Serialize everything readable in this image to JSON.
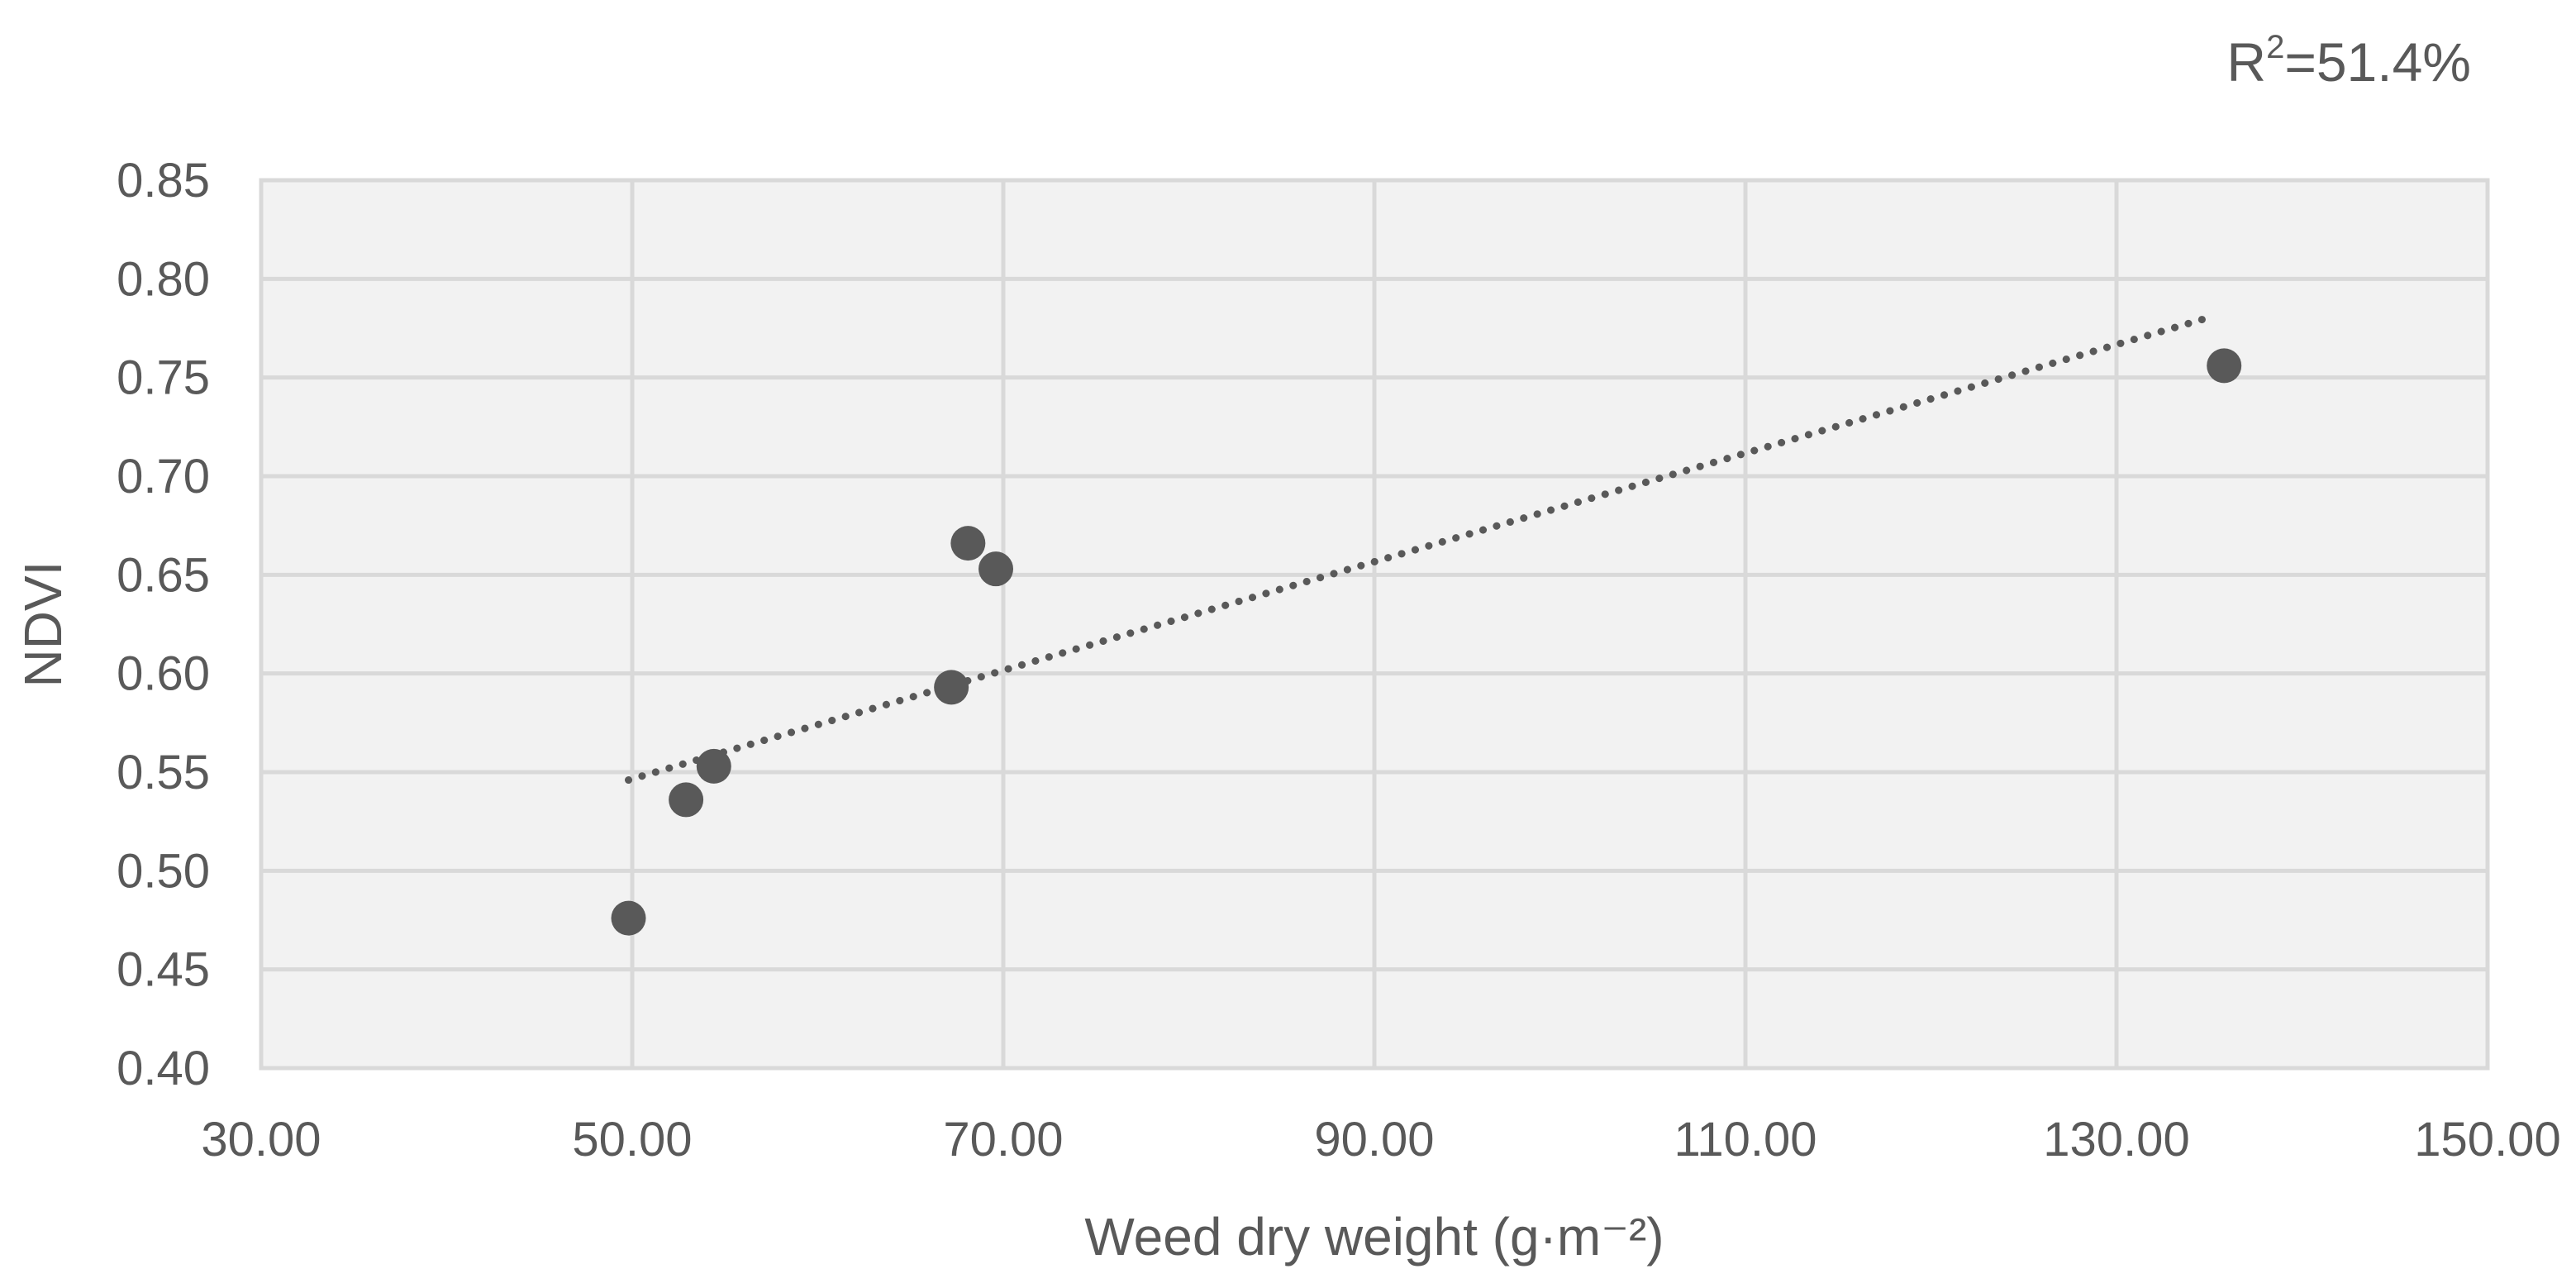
{
  "chart_data": {
    "type": "scatter",
    "title": "",
    "xlabel": "Weed dry weight (g·m⁻²)",
    "ylabel": "NDVI",
    "annotation": {
      "base": "R",
      "superscript": "2",
      "rest": "=51.4%"
    },
    "xlim": [
      30,
      150
    ],
    "ylim": [
      0.4,
      0.85
    ],
    "x_ticks": [
      30,
      50,
      70,
      90,
      110,
      130,
      150
    ],
    "x_tick_labels": [
      "30.00",
      "50.00",
      "70.00",
      "90.00",
      "110.00",
      "130.00",
      "150.00"
    ],
    "y_ticks": [
      0.4,
      0.45,
      0.5,
      0.55,
      0.6,
      0.65,
      0.7,
      0.75,
      0.8,
      0.85
    ],
    "y_tick_labels": [
      "0.40",
      "0.45",
      "0.50",
      "0.55",
      "0.60",
      "0.65",
      "0.70",
      "0.75",
      "0.80",
      "0.85"
    ],
    "grid": true,
    "series": [
      {
        "points": [
          {
            "x": 49.8,
            "y": 0.476
          },
          {
            "x": 52.9,
            "y": 0.536
          },
          {
            "x": 54.4,
            "y": 0.553
          },
          {
            "x": 67.2,
            "y": 0.593
          },
          {
            "x": 68.1,
            "y": 0.666
          },
          {
            "x": 69.6,
            "y": 0.653
          },
          {
            "x": 135.8,
            "y": 0.756
          }
        ],
        "color": "#595959"
      }
    ],
    "trendline": {
      "style": "dotted",
      "color": "#595959",
      "x_start": 49.8,
      "y_start": 0.546,
      "x_end": 135.2,
      "y_end": 0.781
    },
    "colors": {
      "plot_background": "#f2f2f2",
      "grid": "#d9d9d9",
      "text": "#595959",
      "marker": "#595959"
    }
  }
}
